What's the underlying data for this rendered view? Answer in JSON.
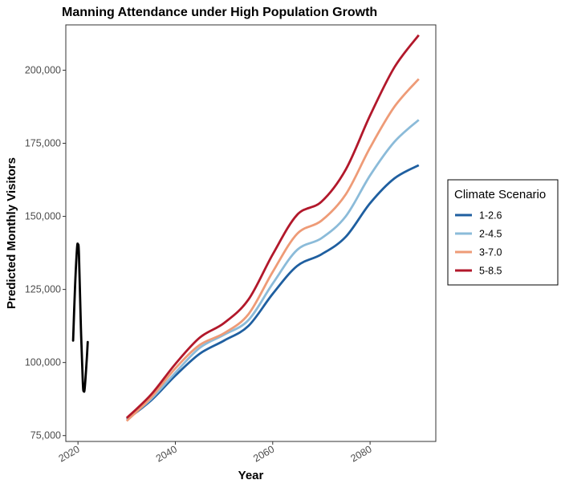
{
  "chart_data": {
    "type": "line",
    "title": "Manning Attendance under High Population Growth",
    "xlabel": "Year",
    "ylabel": "Predicted Monthly Visitors",
    "xlim": [
      2017.5,
      2093.5
    ],
    "ylim": [
      73000,
      215500
    ],
    "x_ticks": [
      2020,
      2040,
      2060,
      2080
    ],
    "y_ticks": [
      75000,
      100000,
      125000,
      150000,
      175000,
      200000
    ],
    "x_tick_labels": [
      "2020",
      "2040",
      "2060",
      "2080"
    ],
    "y_tick_labels": [
      "75,000",
      "100,000",
      "125,000",
      "150,000",
      "175,000",
      "200,000"
    ],
    "grid": false,
    "legend": {
      "title": "Climate Scenario",
      "placement": "right"
    },
    "historical": {
      "color": "#000000",
      "x": [
        2019.0,
        2019.4,
        2019.8,
        2020.0,
        2020.2,
        2020.6,
        2021.0,
        2021.2,
        2021.4,
        2021.8,
        2022.0
      ],
      "y": [
        107500,
        126000,
        139000,
        140300,
        137000,
        112000,
        93000,
        90200,
        91500,
        101000,
        107000
      ]
    },
    "series": [
      {
        "name": "1-2.6",
        "color": "#1f5fa0",
        "x": [
          2030,
          2035,
          2040,
          2045,
          2050,
          2055,
          2060,
          2065,
          2070,
          2075,
          2080,
          2085,
          2090
        ],
        "y": [
          80500,
          87000,
          95500,
          103000,
          107500,
          112500,
          123500,
          133000,
          137000,
          143000,
          154500,
          163000,
          167500
        ]
      },
      {
        "name": "2-4.5",
        "color": "#8bbbd9",
        "x": [
          2030,
          2035,
          2040,
          2045,
          2050,
          2055,
          2060,
          2065,
          2070,
          2075,
          2080,
          2085,
          2090
        ],
        "y": [
          80500,
          87500,
          96500,
          105000,
          109500,
          114500,
          127000,
          138500,
          142500,
          150000,
          164000,
          175500,
          183000
        ]
      },
      {
        "name": "3-7.0",
        "color": "#ee9b77",
        "x": [
          2030,
          2035,
          2040,
          2045,
          2050,
          2055,
          2060,
          2065,
          2070,
          2075,
          2080,
          2085,
          2090
        ],
        "y": [
          80000,
          88000,
          98000,
          106000,
          110000,
          116500,
          131000,
          144000,
          148500,
          157500,
          173500,
          187500,
          197000
        ]
      },
      {
        "name": "5-8.5",
        "color": "#b2182b",
        "x": [
          2030,
          2035,
          2040,
          2045,
          2050,
          2055,
          2060,
          2065,
          2070,
          2075,
          2080,
          2085,
          2090
        ],
        "y": [
          81000,
          89000,
          99500,
          108500,
          113500,
          121500,
          137000,
          150500,
          155000,
          166000,
          184500,
          201000,
          212000
        ]
      }
    ]
  }
}
